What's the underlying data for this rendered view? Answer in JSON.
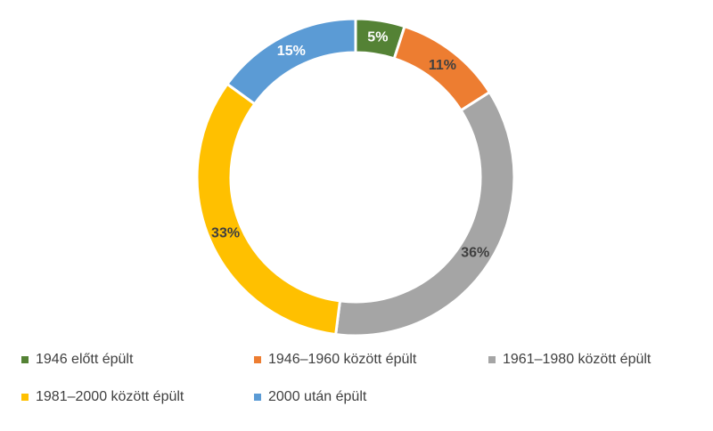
{
  "chart_data": {
    "type": "pie",
    "title": "",
    "categories": [
      "1946 előtt épült",
      "1946–1960 között épült",
      "1961–1980 között épült",
      "1981–2000 között épült",
      "2000 után épült"
    ],
    "values": [
      5,
      11,
      36,
      33,
      15
    ],
    "value_labels": [
      "5%",
      "11%",
      "36%",
      "33%",
      "15%"
    ],
    "colors": [
      "#548235",
      "#ED7D31",
      "#A5A5A5",
      "#FFC000",
      "#5B9BD5"
    ],
    "label_colors": [
      "#ffffff",
      "#404040",
      "#404040",
      "#404040",
      "#ffffff"
    ],
    "donut": true,
    "legend_position": "bottom"
  }
}
